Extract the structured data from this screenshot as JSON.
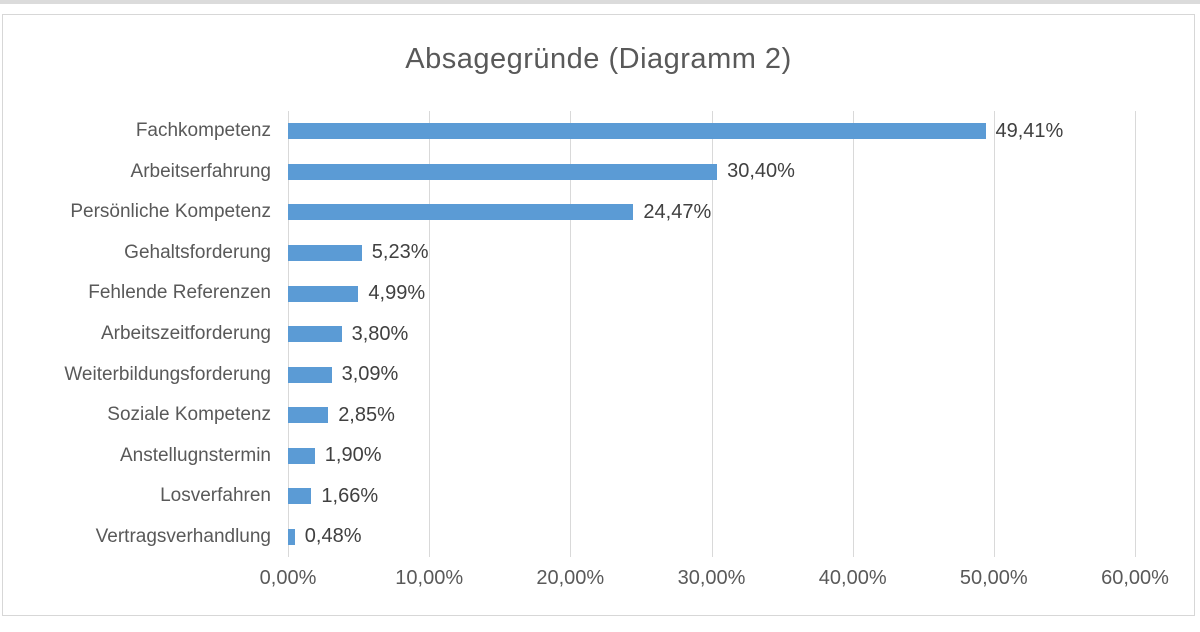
{
  "chart_data": {
    "type": "bar",
    "orientation": "horizontal",
    "title": "Absagegründe (Diagramm 2)",
    "categories": [
      "Fachkompetenz",
      "Arbeitserfahrung",
      "Persönliche Kompetenz",
      "Gehaltsforderung",
      "Fehlende Referenzen",
      "Arbeitszeitforderung",
      "Weiterbildungsforderung",
      "Soziale Kompetenz",
      "Anstellugnstermin",
      "Losverfahren",
      "Vertragsverhandlung"
    ],
    "values": [
      49.41,
      30.4,
      24.47,
      5.23,
      4.99,
      3.8,
      3.09,
      2.85,
      1.9,
      1.66,
      0.48
    ],
    "value_labels": [
      "49,41%",
      "30,40%",
      "24,47%",
      "5,23%",
      "4,99%",
      "3,80%",
      "3,09%",
      "2,85%",
      "1,90%",
      "1,66%",
      "0,48%"
    ],
    "x_tick_labels": [
      "0,00%",
      "10,00%",
      "20,00%",
      "30,00%",
      "40,00%",
      "50,00%",
      "60,00%"
    ],
    "x_tick_values": [
      0,
      10,
      20,
      30,
      40,
      50,
      60
    ],
    "xlim": [
      0,
      60
    ],
    "xlabel": "",
    "ylabel": "",
    "grid": true,
    "legend": false,
    "colors": {
      "bar": "#5b9bd5",
      "gridline": "#d9d9d9",
      "title_text": "#595959",
      "axis_text": "#595959",
      "value_text": "#404040",
      "frame_border": "#d7d7d7"
    }
  }
}
